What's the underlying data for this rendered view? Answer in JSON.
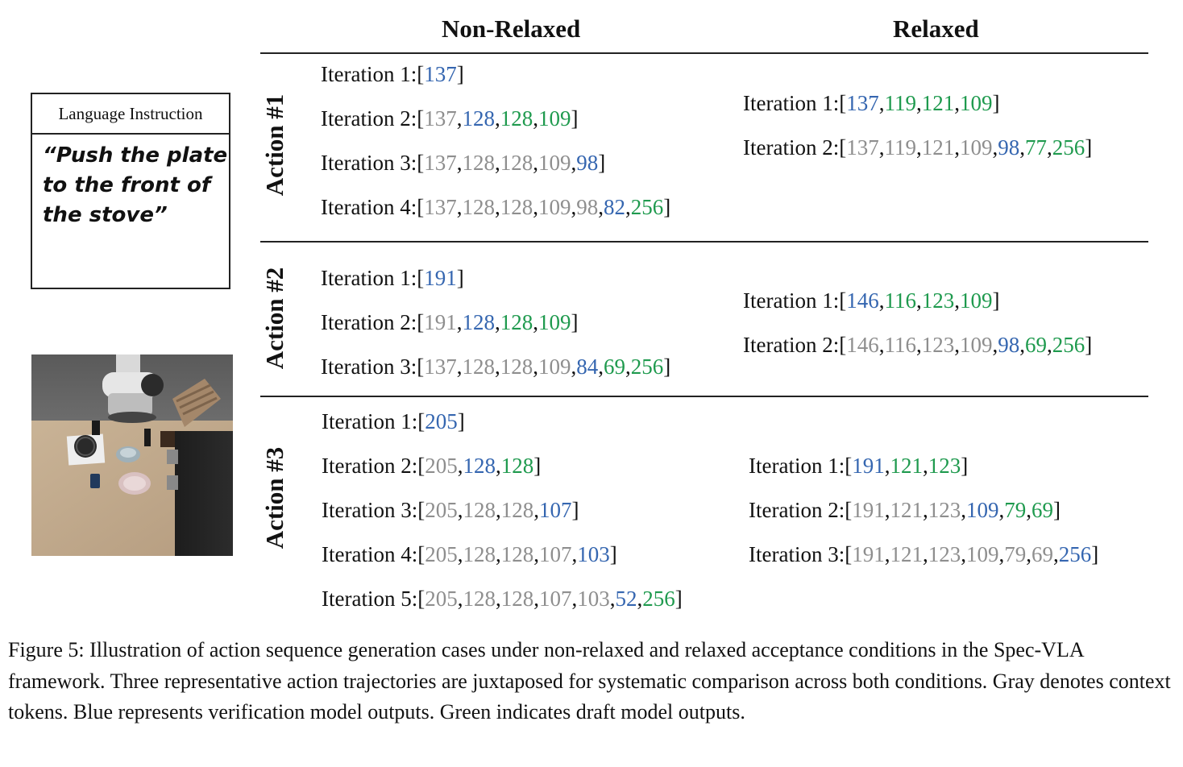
{
  "headers": {
    "non_relaxed": "Non-Relaxed",
    "relaxed": "Relaxed"
  },
  "instruction": {
    "title": "Language Instruction",
    "text": "“Push the plate to the front of the stove”"
  },
  "scene_image": {
    "description_icon": "robot-kitchen-scene-icon"
  },
  "colors": {
    "gray": "#8e8e8e",
    "blue": "#3566b0",
    "green": "#1f9a4e"
  },
  "actions": [
    {
      "label": "Action #1",
      "non_relaxed": [
        {
          "prefix": "Iteration 1:",
          "tokens": [
            [
              "137",
              "b"
            ]
          ]
        },
        {
          "prefix": "Iteration 2:",
          "tokens": [
            [
              "137",
              "g"
            ],
            [
              "128",
              "b"
            ],
            [
              "128",
              "G"
            ],
            [
              "109",
              "G"
            ]
          ]
        },
        {
          "prefix": "Iteration 3:",
          "tokens": [
            [
              "137",
              "g"
            ],
            [
              "128",
              "g"
            ],
            [
              "128",
              "g"
            ],
            [
              "109",
              "g"
            ],
            [
              "98",
              "b"
            ]
          ]
        },
        {
          "prefix": "Iteration 4:",
          "tokens": [
            [
              "137",
              "g"
            ],
            [
              "128",
              "g"
            ],
            [
              "128",
              "g"
            ],
            [
              "109",
              "g"
            ],
            [
              "98",
              "g"
            ],
            [
              "82",
              "b"
            ],
            [
              "256",
              "G"
            ]
          ]
        }
      ],
      "relaxed": [
        {
          "prefix": "Iteration 1:",
          "tokens": [
            [
              "137",
              "b"
            ],
            [
              "119",
              "G"
            ],
            [
              "121",
              "G"
            ],
            [
              "109",
              "G"
            ]
          ]
        },
        {
          "prefix": "Iteration 2:",
          "tokens": [
            [
              "137",
              "g"
            ],
            [
              "119",
              "g"
            ],
            [
              "121",
              "g"
            ],
            [
              "109",
              "g"
            ],
            [
              "98",
              "b"
            ],
            [
              "77",
              "G"
            ],
            [
              "256",
              "G"
            ]
          ]
        }
      ]
    },
    {
      "label": "Action #2",
      "non_relaxed": [
        {
          "prefix": "Iteration 1:",
          "tokens": [
            [
              "191",
              "b"
            ]
          ]
        },
        {
          "prefix": "Iteration 2:",
          "tokens": [
            [
              "191",
              "g"
            ],
            [
              "128",
              "b"
            ],
            [
              "128",
              "G"
            ],
            [
              "109",
              "G"
            ]
          ]
        },
        {
          "prefix": "Iteration 3:",
          "tokens": [
            [
              "137",
              "g"
            ],
            [
              "128",
              "g"
            ],
            [
              "128",
              "g"
            ],
            [
              "109",
              "g"
            ],
            [
              "84",
              "b"
            ],
            [
              "69",
              "G"
            ],
            [
              "256",
              "G"
            ]
          ]
        }
      ],
      "relaxed": [
        {
          "prefix": "Iteration 1:",
          "tokens": [
            [
              "146",
              "b"
            ],
            [
              "116",
              "G"
            ],
            [
              "123",
              "G"
            ],
            [
              "109",
              "G"
            ]
          ]
        },
        {
          "prefix": "Iteration 2:",
          "tokens": [
            [
              "146",
              "g"
            ],
            [
              "116",
              "g"
            ],
            [
              "123",
              "g"
            ],
            [
              "109",
              "g"
            ],
            [
              "98",
              "b"
            ],
            [
              "69",
              "G"
            ],
            [
              "256",
              "G"
            ]
          ]
        }
      ]
    },
    {
      "label": "Action #3",
      "non_relaxed": [
        {
          "prefix": "Iteration 1:",
          "tokens": [
            [
              "205",
              "b"
            ]
          ]
        },
        {
          "prefix": "Iteration 2:",
          "tokens": [
            [
              "205",
              "g"
            ],
            [
              "128",
              "b"
            ],
            [
              "128",
              "G"
            ]
          ]
        },
        {
          "prefix": "Iteration 3:",
          "tokens": [
            [
              "205",
              "g"
            ],
            [
              "128",
              "g"
            ],
            [
              "128",
              "g"
            ],
            [
              "107",
              "b"
            ]
          ]
        },
        {
          "prefix": "Iteration 4:",
          "tokens": [
            [
              "205",
              "g"
            ],
            [
              "128",
              "g"
            ],
            [
              "128",
              "g"
            ],
            [
              "107",
              "g"
            ],
            [
              "103",
              "b"
            ]
          ]
        },
        {
          "prefix": "Iteration 5:",
          "tokens": [
            [
              "205",
              "g"
            ],
            [
              "128",
              "g"
            ],
            [
              "128",
              "g"
            ],
            [
              "107",
              "g"
            ],
            [
              "103",
              "g"
            ],
            [
              "52",
              "b"
            ],
            [
              "256",
              "G"
            ]
          ]
        }
      ],
      "relaxed": [
        {
          "prefix": "Iteration 1:",
          "tokens": [
            [
              "191",
              "b"
            ],
            [
              "121",
              "G"
            ],
            [
              "123",
              "G"
            ]
          ]
        },
        {
          "prefix": "Iteration 2:",
          "tokens": [
            [
              "191",
              "g"
            ],
            [
              "121",
              "g"
            ],
            [
              "123",
              "g"
            ],
            [
              "109",
              "b"
            ],
            [
              "79",
              "G"
            ],
            [
              "69",
              "G"
            ]
          ]
        },
        {
          "prefix": "Iteration 3:",
          "tokens": [
            [
              "191",
              "g"
            ],
            [
              "121",
              "g"
            ],
            [
              "123",
              "g"
            ],
            [
              "109",
              "g"
            ],
            [
              "79",
              "g"
            ],
            [
              "69",
              "g"
            ],
            [
              "256",
              "b"
            ]
          ]
        }
      ]
    }
  ],
  "caption": "Figure 5: Illustration of action sequence generation cases under non-relaxed and relaxed acceptance conditions in the Spec-VLA framework. Three representative action trajectories are juxtaposed for systematic comparison across both conditions. Gray denotes context tokens. Blue represents verification model outputs. Green indicates draft model outputs."
}
